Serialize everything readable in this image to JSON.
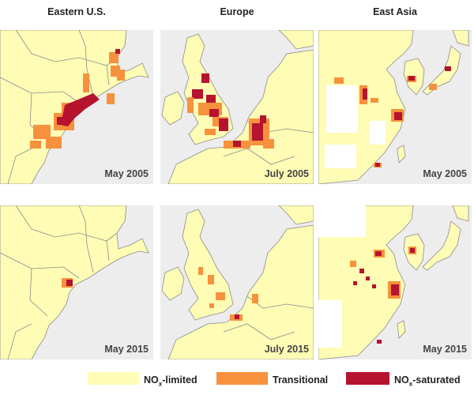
{
  "columns": [
    "Eastern U.S.",
    "Europe",
    "East Asia"
  ],
  "dates": {
    "row1": [
      "May 2005",
      "July 2005",
      "May 2005"
    ],
    "row2": [
      "May 2015",
      "July 2015",
      "May 2015"
    ]
  },
  "legend": [
    {
      "prefix": "NO",
      "sub": "x",
      "suffix": "-limited",
      "color": "#fefcb5"
    },
    {
      "prefix": "Transitional",
      "sub": "",
      "suffix": "",
      "color": "#f7913d"
    },
    {
      "prefix": "NO",
      "sub": "x",
      "suffix": "-saturated",
      "color": "#b5132e"
    }
  ],
  "colors": {
    "background": "#ededed",
    "limited": "#fefcb5",
    "transitional": "#f7913d",
    "saturated": "#b5132e",
    "border": "#8c8c8c"
  }
}
